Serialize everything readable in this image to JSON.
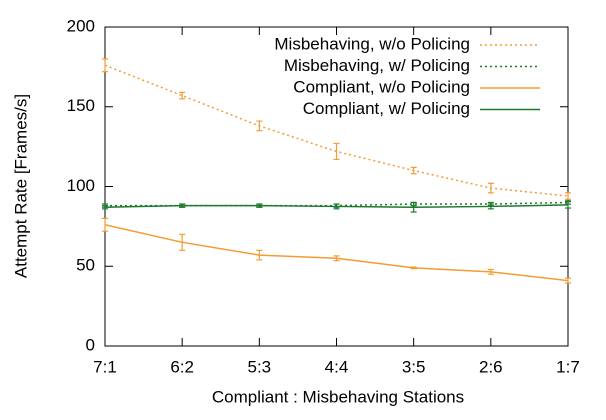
{
  "chart_data": {
    "type": "line",
    "xlabel": "Compliant : Misbehaving Stations",
    "ylabel": "Attempt Rate [Frames/s]",
    "categories": [
      "7:1",
      "6:2",
      "5:3",
      "4:4",
      "3:5",
      "2:6",
      "1:7"
    ],
    "ylim": [
      0,
      200
    ],
    "yticks": [
      0,
      50,
      100,
      150,
      200
    ],
    "legend": "top-right",
    "series": [
      {
        "name": "Misbehaving, w/o Policing",
        "color": "#f39c33",
        "line_style": "dotted",
        "values": [
          176,
          157,
          138,
          122,
          110,
          99,
          94
        ],
        "errors": [
          4,
          2,
          3,
          5,
          2,
          3,
          2
        ]
      },
      {
        "name": "Misbehaving, w/ Policing",
        "color": "#1b7a2e",
        "line_style": "dotted",
        "values": [
          88,
          88,
          88,
          88,
          89,
          89,
          90
        ],
        "errors": [
          1,
          1,
          1,
          1,
          1,
          1,
          1
        ]
      },
      {
        "name": "Compliant, w/o Policing",
        "color": "#f39c33",
        "line_style": "solid",
        "values": [
          76,
          65,
          57,
          55,
          49,
          46.5,
          41
        ],
        "errors": [
          4,
          5,
          3,
          1.5,
          0.5,
          1.5,
          1.5
        ]
      },
      {
        "name": "Compliant, w/ Policing",
        "color": "#1b7a2e",
        "line_style": "solid",
        "values": [
          87,
          88,
          88,
          87.5,
          87,
          87.5,
          88.5
        ],
        "errors": [
          1,
          1,
          1,
          1.5,
          3,
          1.5,
          2
        ]
      }
    ]
  }
}
